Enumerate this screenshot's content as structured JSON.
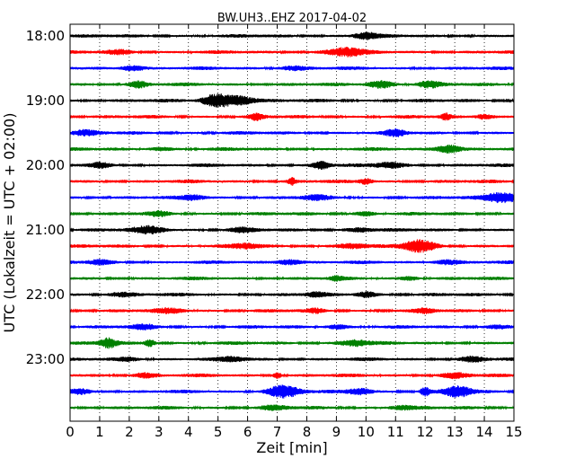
{
  "chart_data": {
    "type": "line",
    "title": "BW.UH3..EHZ 2017-04-02",
    "xlabel": "Zeit  [min]",
    "ylabel": "UTC (Lokalzeit = UTC + 02:00)",
    "xlim": [
      0,
      15
    ],
    "x_ticks": [
      0,
      1,
      2,
      3,
      4,
      5,
      6,
      7,
      8,
      9,
      10,
      11,
      12,
      13,
      14,
      15
    ],
    "x_tick_labels": [
      "0",
      "1",
      "2",
      "3",
      "4",
      "5",
      "6",
      "7",
      "8",
      "9",
      "10",
      "11",
      "12",
      "13",
      "14",
      "15"
    ],
    "y_tick_labels": [
      "18:00",
      "19:00",
      "20:00",
      "21:00",
      "22:00",
      "23:00"
    ],
    "grid": "vertical dotted",
    "color_cycle": [
      "#000000",
      "#ff0000",
      "#0000ff",
      "#008000"
    ],
    "traces": [
      {
        "start": "18:00",
        "bursts": [
          [
            10,
            0.8,
            6
          ]
        ]
      },
      {
        "start": "18:15",
        "bursts": [
          [
            9.3,
            1.1,
            3
          ],
          [
            1.7,
            0.5,
            5
          ]
        ]
      },
      {
        "start": "18:30",
        "bursts": [
          [
            2.1,
            0.7,
            6
          ],
          [
            7.5,
            0.5,
            4
          ]
        ]
      },
      {
        "start": "18:45",
        "bursts": [
          [
            2.3,
            0.8,
            10
          ],
          [
            10.5,
            0.9,
            5
          ],
          [
            12.1,
            0.8,
            6
          ]
        ]
      },
      {
        "start": "19:00",
        "bursts": [
          [
            4.9,
            1.5,
            5
          ],
          [
            5.7,
            1.2,
            3
          ]
        ]
      },
      {
        "start": "19:15",
        "bursts": [
          [
            6.3,
            0.7,
            20
          ],
          [
            12.7,
            0.8,
            40
          ],
          [
            14.0,
            0.7,
            10
          ]
        ]
      },
      {
        "start": "19:30",
        "bursts": [
          [
            11.0,
            0.8,
            10
          ],
          [
            0.5,
            0.6,
            5
          ]
        ]
      },
      {
        "start": "19:45",
        "bursts": [
          [
            12.8,
            1.1,
            5
          ],
          [
            3.0,
            0.4,
            5
          ]
        ]
      },
      {
        "start": "20:00",
        "bursts": [
          [
            8.5,
            0.9,
            12
          ],
          [
            1.0,
            0.6,
            8
          ],
          [
            10.8,
            0.7,
            4
          ]
        ]
      },
      {
        "start": "20:15",
        "bursts": [
          [
            7.5,
            0.8,
            60
          ],
          [
            10.0,
            0.7,
            20
          ]
        ]
      },
      {
        "start": "20:30",
        "bursts": [
          [
            14.6,
            1.4,
            3
          ],
          [
            4.2,
            0.6,
            6
          ],
          [
            8.3,
            0.5,
            5
          ]
        ]
      },
      {
        "start": "20:45",
        "bursts": [
          [
            3.0,
            0.5,
            8
          ],
          [
            10.0,
            0.5,
            8
          ]
        ]
      },
      {
        "start": "21:00",
        "bursts": [
          [
            2.7,
            0.9,
            3
          ],
          [
            5.8,
            0.5,
            6
          ],
          [
            9.8,
            0.5,
            5
          ]
        ]
      },
      {
        "start": "21:15",
        "bursts": [
          [
            11.8,
            1.5,
            3
          ],
          [
            6.0,
            0.6,
            5
          ],
          [
            9.5,
            0.6,
            5
          ]
        ]
      },
      {
        "start": "21:30",
        "bursts": [
          [
            7.4,
            0.7,
            5
          ],
          [
            1.0,
            0.5,
            6
          ],
          [
            12.7,
            0.6,
            5
          ]
        ]
      },
      {
        "start": "21:45",
        "bursts": [
          [
            9.0,
            0.5,
            25
          ],
          [
            11.5,
            0.5,
            10
          ]
        ]
      },
      {
        "start": "22:00",
        "bursts": [
          [
            8.3,
            0.5,
            10
          ],
          [
            10.0,
            0.7,
            8
          ],
          [
            1.7,
            0.5,
            4
          ]
        ]
      },
      {
        "start": "22:15",
        "bursts": [
          [
            8.3,
            0.5,
            15
          ],
          [
            12.0,
            0.5,
            10
          ],
          [
            3.4,
            0.5,
            4
          ]
        ]
      },
      {
        "start": "22:30",
        "bursts": [
          [
            2.5,
            0.5,
            6
          ],
          [
            9.0,
            0.5,
            6
          ],
          [
            14.4,
            0.4,
            4
          ]
        ]
      },
      {
        "start": "22:45",
        "bursts": [
          [
            1.3,
            1.2,
            12
          ],
          [
            2.7,
            0.9,
            30
          ],
          [
            9.6,
            0.8,
            4
          ]
        ]
      },
      {
        "start": "23:00",
        "bursts": [
          [
            2.0,
            0.5,
            6
          ],
          [
            13.6,
            0.6,
            5
          ],
          [
            5.5,
            0.5,
            5
          ]
        ]
      },
      {
        "start": "23:15",
        "bursts": [
          [
            7.0,
            0.9,
            55
          ],
          [
            2.5,
            0.6,
            6
          ],
          [
            13.0,
            0.6,
            5
          ]
        ]
      },
      {
        "start": "23:30",
        "bursts": [
          [
            7.2,
            1.5,
            3
          ],
          [
            12.0,
            1.0,
            40
          ],
          [
            13.1,
            1.4,
            5
          ],
          [
            9.8,
            0.8,
            6
          ],
          [
            0.3,
            0.6,
            5
          ]
        ]
      },
      {
        "start": "23:45",
        "bursts": [
          [
            6.9,
            0.5,
            5
          ],
          [
            11.2,
            0.5,
            5
          ]
        ]
      }
    ]
  }
}
